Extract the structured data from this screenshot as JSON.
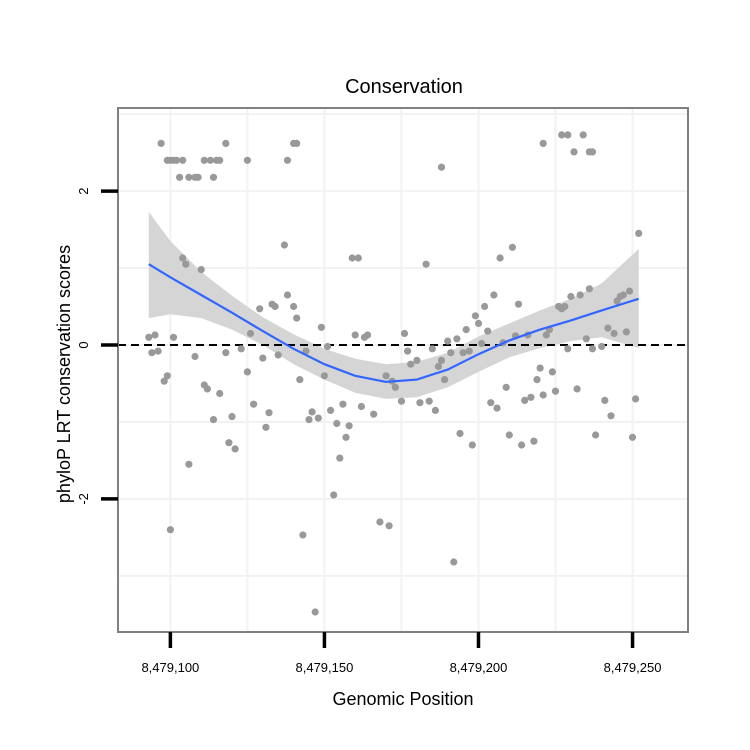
{
  "chart_data": {
    "type": "scatter",
    "title": "Conservation",
    "xlabel": "Genomic Position",
    "ylabel": "phyloP LRT conservation scores",
    "xlim": [
      8479083,
      8479268
    ],
    "ylim": [
      -3.73,
      3.08
    ],
    "x_ticks": [
      8479100,
      8479150,
      8479200,
      8479250
    ],
    "x_tick_labels": [
      "8,479,100",
      "8,479,150",
      "8,479,200",
      "8,479,250"
    ],
    "y_ticks": [
      -2,
      0,
      2
    ],
    "y_tick_labels": [
      "-2",
      "0",
      "2"
    ],
    "grid": true,
    "reference_line": {
      "y": 0,
      "style": "dashed"
    },
    "colors": {
      "points": "#999999",
      "smooth": "#3366ff",
      "ribbon": "#d3d3d3",
      "panel_border": "#808080",
      "grid": "#f2f2f2"
    },
    "series": [
      {
        "type": "points",
        "points": [
          [
            8479097,
            2.62
          ],
          [
            8479099,
            2.4
          ],
          [
            8479100,
            2.4
          ],
          [
            8479101,
            2.4
          ],
          [
            8479102,
            2.4
          ],
          [
            8479103,
            2.18
          ],
          [
            8479104,
            2.4
          ],
          [
            8479106,
            2.18
          ],
          [
            8479108,
            2.18
          ],
          [
            8479109,
            2.18
          ],
          [
            8479111,
            2.4
          ],
          [
            8479113,
            2.4
          ],
          [
            8479114,
            2.18
          ],
          [
            8479115,
            2.4
          ],
          [
            8479116,
            2.4
          ],
          [
            8479118,
            2.62
          ],
          [
            8479125,
            2.4
          ],
          [
            8479138,
            2.4
          ],
          [
            8479140,
            2.62
          ],
          [
            8479141,
            2.62
          ],
          [
            8479188,
            2.31
          ],
          [
            8479221,
            2.62
          ],
          [
            8479227,
            2.73
          ],
          [
            8479229,
            2.73
          ],
          [
            8479231,
            2.51
          ],
          [
            8479234,
            2.73
          ],
          [
            8479236,
            2.51
          ],
          [
            8479237,
            2.51
          ],
          [
            8479093,
            0.1
          ],
          [
            8479095,
            0.13
          ],
          [
            8479094,
            -0.1
          ],
          [
            8479096,
            -0.08
          ],
          [
            8479098,
            -0.47
          ],
          [
            8479099,
            -0.4
          ],
          [
            8479100,
            -2.4
          ],
          [
            8479101,
            0.1
          ],
          [
            8479104,
            1.13
          ],
          [
            8479105,
            1.05
          ],
          [
            8479106,
            -1.55
          ],
          [
            8479108,
            -0.15
          ],
          [
            8479110,
            0.98
          ],
          [
            8479111,
            -0.52
          ],
          [
            8479112,
            -0.57
          ],
          [
            8479114,
            -0.97
          ],
          [
            8479116,
            -0.63
          ],
          [
            8479118,
            -0.1
          ],
          [
            8479119,
            -1.27
          ],
          [
            8479120,
            -0.93
          ],
          [
            8479121,
            -1.35
          ],
          [
            8479123,
            -0.05
          ],
          [
            8479125,
            -0.35
          ],
          [
            8479126,
            0.15
          ],
          [
            8479127,
            -0.77
          ],
          [
            8479129,
            0.47
          ],
          [
            8479130,
            -0.17
          ],
          [
            8479131,
            -1.07
          ],
          [
            8479132,
            -0.88
          ],
          [
            8479133,
            0.53
          ],
          [
            8479134,
            0.5
          ],
          [
            8479135,
            -0.13
          ],
          [
            8479137,
            1.3
          ],
          [
            8479138,
            0.65
          ],
          [
            8479140,
            0.5
          ],
          [
            8479141,
            0.35
          ],
          [
            8479142,
            -0.45
          ],
          [
            8479143,
            -2.47
          ],
          [
            8479144,
            -0.08
          ],
          [
            8479145,
            -0.97
          ],
          [
            8479146,
            -0.87
          ],
          [
            8479147,
            -3.47
          ],
          [
            8479148,
            -0.95
          ],
          [
            8479149,
            0.23
          ],
          [
            8479150,
            -0.4
          ],
          [
            8479151,
            -0.02
          ],
          [
            8479152,
            -0.85
          ],
          [
            8479153,
            -1.95
          ],
          [
            8479154,
            -1.02
          ],
          [
            8479155,
            -1.47
          ],
          [
            8479156,
            -0.77
          ],
          [
            8479157,
            -1.2
          ],
          [
            8479158,
            -1.05
          ],
          [
            8479159,
            1.13
          ],
          [
            8479160,
            0.13
          ],
          [
            8479161,
            1.13
          ],
          [
            8479162,
            -0.8
          ],
          [
            8479163,
            0.1
          ],
          [
            8479164,
            0.13
          ],
          [
            8479166,
            -0.9
          ],
          [
            8479168,
            -2.3
          ],
          [
            8479170,
            -0.4
          ],
          [
            8479171,
            -2.35
          ],
          [
            8479172,
            -0.47
          ],
          [
            8479173,
            -0.55
          ],
          [
            8479175,
            -0.73
          ],
          [
            8479176,
            0.15
          ],
          [
            8479177,
            -0.08
          ],
          [
            8479178,
            -0.25
          ],
          [
            8479180,
            -0.2
          ],
          [
            8479181,
            -0.75
          ],
          [
            8479183,
            1.05
          ],
          [
            8479184,
            -0.73
          ],
          [
            8479185,
            -0.05
          ],
          [
            8479186,
            -0.85
          ],
          [
            8479187,
            -0.28
          ],
          [
            8479188,
            -0.2
          ],
          [
            8479189,
            -0.45
          ],
          [
            8479190,
            0.05
          ],
          [
            8479191,
            -0.1
          ],
          [
            8479192,
            -2.82
          ],
          [
            8479193,
            0.08
          ],
          [
            8479194,
            -1.15
          ],
          [
            8479195,
            -0.1
          ],
          [
            8479196,
            0.2
          ],
          [
            8479197,
            -0.08
          ],
          [
            8479198,
            -1.3
          ],
          [
            8479199,
            0.38
          ],
          [
            8479200,
            0.28
          ],
          [
            8479201,
            0.02
          ],
          [
            8479202,
            0.5
          ],
          [
            8479203,
            0.18
          ],
          [
            8479204,
            -0.75
          ],
          [
            8479205,
            0.65
          ],
          [
            8479206,
            -0.82
          ],
          [
            8479207,
            1.13
          ],
          [
            8479208,
            0.03
          ],
          [
            8479209,
            -0.55
          ],
          [
            8479210,
            -1.17
          ],
          [
            8479211,
            1.27
          ],
          [
            8479212,
            0.12
          ],
          [
            8479213,
            0.53
          ],
          [
            8479214,
            -1.3
          ],
          [
            8479215,
            -0.72
          ],
          [
            8479216,
            0.13
          ],
          [
            8479217,
            -0.68
          ],
          [
            8479218,
            -1.25
          ],
          [
            8479219,
            -0.45
          ],
          [
            8479220,
            -0.3
          ],
          [
            8479221,
            -0.65
          ],
          [
            8479222,
            0.13
          ],
          [
            8479223,
            0.2
          ],
          [
            8479224,
            -0.35
          ],
          [
            8479225,
            -0.6
          ],
          [
            8479226,
            0.5
          ],
          [
            8479227,
            0.47
          ],
          [
            8479228,
            0.5
          ],
          [
            8479229,
            -0.05
          ],
          [
            8479230,
            0.63
          ],
          [
            8479232,
            -0.57
          ],
          [
            8479233,
            0.65
          ],
          [
            8479235,
            0.08
          ],
          [
            8479236,
            0.73
          ],
          [
            8479237,
            -0.05
          ],
          [
            8479238,
            -1.17
          ],
          [
            8479240,
            -0.02
          ],
          [
            8479241,
            -0.72
          ],
          [
            8479242,
            0.22
          ],
          [
            8479243,
            -0.92
          ],
          [
            8479244,
            0.15
          ],
          [
            8479245,
            0.57
          ],
          [
            8479246,
            0.63
          ],
          [
            8479247,
            0.65
          ],
          [
            8479248,
            0.17
          ],
          [
            8479249,
            0.7
          ],
          [
            8479250,
            -1.2
          ],
          [
            8479251,
            -0.7
          ],
          [
            8479252,
            1.45
          ]
        ]
      },
      {
        "type": "smooth",
        "x": [
          8479093,
          8479100,
          8479110,
          8479120,
          8479130,
          8479140,
          8479150,
          8479160,
          8479170,
          8479180,
          8479190,
          8479200,
          8479210,
          8479220,
          8479230,
          8479240,
          8479252
        ],
        "y": [
          1.05,
          0.88,
          0.65,
          0.42,
          0.18,
          -0.05,
          -0.25,
          -0.4,
          -0.48,
          -0.45,
          -0.32,
          -0.12,
          0.06,
          0.2,
          0.32,
          0.45,
          0.6
        ],
        "lower": [
          0.35,
          0.4,
          0.35,
          0.2,
          0.0,
          -0.25,
          -0.45,
          -0.62,
          -0.7,
          -0.68,
          -0.55,
          -0.35,
          -0.16,
          -0.04,
          0.05,
          0.1,
          -0.04
        ],
        "upper": [
          1.73,
          1.35,
          0.95,
          0.64,
          0.36,
          0.14,
          -0.05,
          -0.18,
          -0.25,
          -0.22,
          -0.1,
          0.11,
          0.28,
          0.45,
          0.6,
          0.8,
          1.25
        ]
      }
    ]
  }
}
